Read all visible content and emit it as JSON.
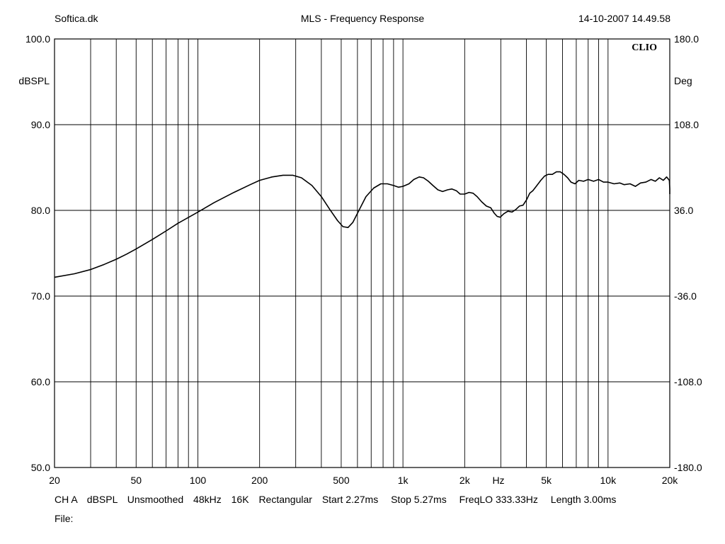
{
  "header": {
    "left": "Softica.dk",
    "center": "MLS - Frequency Response",
    "right": "14-10-2007 14.49.58"
  },
  "brand_label": "CLIO",
  "footer": {
    "settings": [
      "CH A",
      "dBSPL",
      "Unsmoothed",
      "48kHz",
      "16K",
      "Rectangular",
      "Start 2.27ms",
      "Stop 5.27ms",
      "FreqLO 333.33Hz",
      "Length 3.00ms"
    ],
    "file_label": "File:"
  },
  "chart_data": {
    "type": "line",
    "title": "MLS - Frequency Response",
    "xlabel": "Hz",
    "ylabel": "dBSPL",
    "y2label": "Deg",
    "x_scale": "log",
    "xlim": [
      20,
      20000
    ],
    "ylim": [
      50,
      100
    ],
    "y2lim": [
      -180,
      180
    ],
    "grid": true,
    "x_ticks": [
      {
        "value": 20,
        "label": "20"
      },
      {
        "value": 50,
        "label": "50"
      },
      {
        "value": 100,
        "label": "100"
      },
      {
        "value": 200,
        "label": "200"
      },
      {
        "value": 500,
        "label": "500"
      },
      {
        "value": 1000,
        "label": "1k"
      },
      {
        "value": 2000,
        "label": "2k"
      },
      {
        "value": 5000,
        "label": "5k"
      },
      {
        "value": 10000,
        "label": "10k"
      },
      {
        "value": 20000,
        "label": "20k"
      }
    ],
    "y_ticks": [
      {
        "value": 100,
        "label": "100.0"
      },
      {
        "value": 90,
        "label": "90.0"
      },
      {
        "value": 80,
        "label": "80.0"
      },
      {
        "value": 70,
        "label": "70.0"
      },
      {
        "value": 60,
        "label": "60.0"
      },
      {
        "value": 50,
        "label": "50.0"
      }
    ],
    "y2_ticks": [
      {
        "value": 180,
        "label": "180.0"
      },
      {
        "value": 108,
        "label": "108.0"
      },
      {
        "value": 36,
        "label": "36.0"
      },
      {
        "value": -36,
        "label": "-36.0"
      },
      {
        "value": -108,
        "label": "-108.0"
      },
      {
        "value": -180,
        "label": "-180.0"
      }
    ],
    "series": [
      {
        "color": "#000000",
        "points": [
          [
            20,
            72.2
          ],
          [
            25,
            72.6
          ],
          [
            30,
            73.1
          ],
          [
            35,
            73.7
          ],
          [
            40,
            74.3
          ],
          [
            45,
            74.9
          ],
          [
            50,
            75.5
          ],
          [
            60,
            76.6
          ],
          [
            70,
            77.6
          ],
          [
            80,
            78.5
          ],
          [
            100,
            79.8
          ],
          [
            120,
            80.9
          ],
          [
            150,
            82.1
          ],
          [
            180,
            83.0
          ],
          [
            200,
            83.5
          ],
          [
            230,
            83.9
          ],
          [
            260,
            84.1
          ],
          [
            290,
            84.1
          ],
          [
            320,
            83.8
          ],
          [
            360,
            82.9
          ],
          [
            400,
            81.6
          ],
          [
            440,
            80.1
          ],
          [
            480,
            78.8
          ],
          [
            510,
            78.1
          ],
          [
            540,
            78.0
          ],
          [
            570,
            78.6
          ],
          [
            610,
            80.0
          ],
          [
            660,
            81.6
          ],
          [
            720,
            82.6
          ],
          [
            780,
            83.1
          ],
          [
            840,
            83.1
          ],
          [
            900,
            82.9
          ],
          [
            950,
            82.7
          ],
          [
            1000,
            82.8
          ],
          [
            1070,
            83.1
          ],
          [
            1130,
            83.6
          ],
          [
            1200,
            83.9
          ],
          [
            1260,
            83.8
          ],
          [
            1330,
            83.4
          ],
          [
            1400,
            82.9
          ],
          [
            1480,
            82.4
          ],
          [
            1560,
            82.2
          ],
          [
            1650,
            82.4
          ],
          [
            1730,
            82.5
          ],
          [
            1820,
            82.3
          ],
          [
            1900,
            81.9
          ],
          [
            2000,
            81.9
          ],
          [
            2100,
            82.1
          ],
          [
            2200,
            82.0
          ],
          [
            2300,
            81.6
          ],
          [
            2420,
            81.0
          ],
          [
            2550,
            80.5
          ],
          [
            2680,
            80.3
          ],
          [
            2780,
            79.7
          ],
          [
            2880,
            79.3
          ],
          [
            2980,
            79.2
          ],
          [
            3100,
            79.6
          ],
          [
            3250,
            79.9
          ],
          [
            3400,
            79.8
          ],
          [
            3550,
            80.1
          ],
          [
            3700,
            80.5
          ],
          [
            3850,
            80.6
          ],
          [
            4000,
            81.2
          ],
          [
            4150,
            82.0
          ],
          [
            4300,
            82.3
          ],
          [
            4500,
            82.9
          ],
          [
            4700,
            83.5
          ],
          [
            4900,
            84.0
          ],
          [
            5100,
            84.2
          ],
          [
            5350,
            84.2
          ],
          [
            5600,
            84.5
          ],
          [
            5850,
            84.5
          ],
          [
            6100,
            84.2
          ],
          [
            6350,
            83.8
          ],
          [
            6600,
            83.3
          ],
          [
            6900,
            83.1
          ],
          [
            7200,
            83.5
          ],
          [
            7600,
            83.4
          ],
          [
            8000,
            83.6
          ],
          [
            8500,
            83.4
          ],
          [
            9000,
            83.6
          ],
          [
            9500,
            83.3
          ],
          [
            10000,
            83.3
          ],
          [
            10700,
            83.1
          ],
          [
            11400,
            83.2
          ],
          [
            12000,
            83.0
          ],
          [
            12800,
            83.1
          ],
          [
            13600,
            82.8
          ],
          [
            14400,
            83.2
          ],
          [
            15300,
            83.3
          ],
          [
            16200,
            83.6
          ],
          [
            17000,
            83.4
          ],
          [
            17800,
            83.8
          ],
          [
            18600,
            83.5
          ],
          [
            19300,
            83.9
          ],
          [
            19900,
            83.5
          ],
          [
            20300,
            82.5
          ],
          [
            20700,
            82.3
          ],
          [
            21000,
            81.9
          ]
        ]
      }
    ]
  }
}
